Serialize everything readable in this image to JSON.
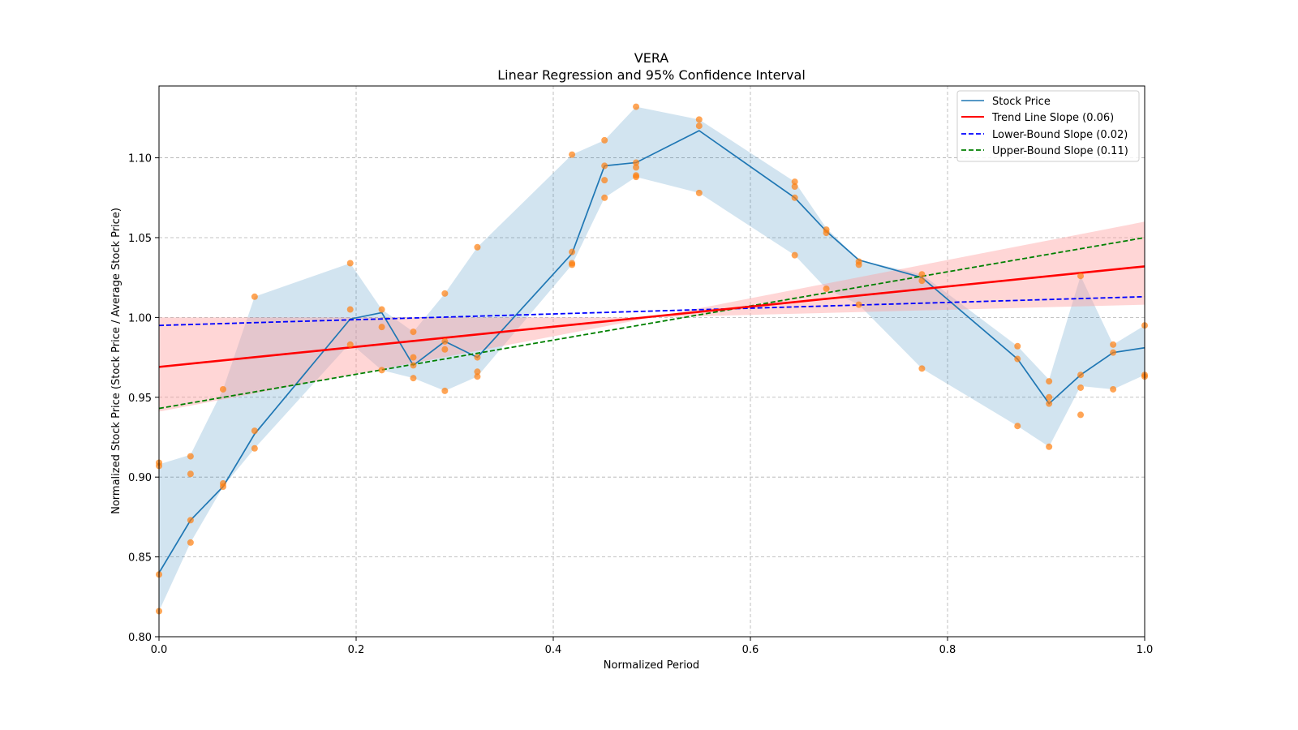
{
  "chart_data": {
    "type": "line",
    "title": "VERA",
    "subtitle": "Linear Regression and 95% Confidence Interval",
    "xlabel": "Normalized Period",
    "ylabel": "Normalized Stock Price (Stock Price / Average Stock Price)",
    "xlim": [
      0.0,
      1.0
    ],
    "ylim": [
      0.8,
      1.145
    ],
    "xticks": [
      "0.0",
      "0.2",
      "0.4",
      "0.6",
      "0.8",
      "1.0"
    ],
    "yticks": [
      "0.80",
      "0.85",
      "0.90",
      "0.95",
      "1.00",
      "1.05",
      "1.10"
    ],
    "grid": true,
    "legend_position": "top-right",
    "legend": [
      {
        "label": "Stock Price",
        "color": "#1f77b4",
        "style": "solid"
      },
      {
        "label": "Trend Line Slope (0.06)",
        "color": "#ff0000",
        "style": "solid"
      },
      {
        "label": "Lower-Bound Slope (0.02)",
        "color": "#0000ff",
        "style": "dashed"
      },
      {
        "label": "Upper-Bound Slope (0.11)",
        "color": "#008000",
        "style": "dashed"
      }
    ],
    "stock_price": {
      "x": [
        0.0,
        0.032,
        0.065,
        0.097,
        0.194,
        0.226,
        0.258,
        0.29,
        0.323,
        0.419,
        0.452,
        0.484,
        0.548,
        0.645,
        0.677,
        0.71,
        0.774,
        0.871,
        0.903,
        0.935,
        0.968,
        1.0
      ],
      "y": [
        0.84,
        0.873,
        0.894,
        0.927,
        0.999,
        1.003,
        0.97,
        0.985,
        0.975,
        1.04,
        1.095,
        1.097,
        1.117,
        1.075,
        1.054,
        1.036,
        1.025,
        0.974,
        0.946,
        0.964,
        0.978,
        0.981
      ]
    },
    "stock_band": {
      "lower": [
        0.816,
        0.859,
        0.894,
        0.918,
        0.984,
        0.967,
        0.962,
        0.954,
        0.963,
        1.033,
        1.075,
        1.088,
        1.078,
        1.039,
        1.018,
        1.008,
        0.968,
        0.932,
        0.919,
        0.957,
        0.955,
        0.964
      ],
      "upper": [
        0.908,
        0.914,
        0.955,
        1.013,
        1.034,
        1.005,
        0.991,
        1.015,
        1.044,
        1.102,
        1.111,
        1.132,
        1.124,
        1.085,
        1.056,
        1.036,
        1.027,
        0.982,
        0.961,
        1.026,
        0.983,
        0.995
      ]
    },
    "scatter_points": {
      "x": [
        0.0,
        0.0,
        0.0,
        0.0,
        0.032,
        0.032,
        0.032,
        0.032,
        0.065,
        0.065,
        0.065,
        0.097,
        0.097,
        0.097,
        0.194,
        0.194,
        0.194,
        0.226,
        0.226,
        0.226,
        0.258,
        0.258,
        0.258,
        0.258,
        0.29,
        0.29,
        0.29,
        0.29,
        0.323,
        0.323,
        0.323,
        0.323,
        0.419,
        0.419,
        0.419,
        0.419,
        0.452,
        0.452,
        0.452,
        0.452,
        0.484,
        0.484,
        0.484,
        0.484,
        0.484,
        0.548,
        0.548,
        0.548,
        0.645,
        0.645,
        0.645,
        0.645,
        0.677,
        0.677,
        0.677,
        0.71,
        0.71,
        0.71,
        0.774,
        0.774,
        0.774,
        0.871,
        0.871,
        0.871,
        0.903,
        0.903,
        0.903,
        0.903,
        0.935,
        0.935,
        0.935,
        0.935,
        0.968,
        0.968,
        0.968,
        1.0,
        1.0,
        1.0
      ],
      "y": [
        0.909,
        0.907,
        0.839,
        0.816,
        0.913,
        0.902,
        0.873,
        0.859,
        0.955,
        0.896,
        0.894,
        1.013,
        0.929,
        0.918,
        1.034,
        1.005,
        0.983,
        1.005,
        0.994,
        0.967,
        0.991,
        0.975,
        0.97,
        0.962,
        1.015,
        0.985,
        0.98,
        0.954,
        1.044,
        0.975,
        0.966,
        0.963,
        1.102,
        1.034,
        1.033,
        1.041,
        1.111,
        1.095,
        1.086,
        1.075,
        1.132,
        1.097,
        1.094,
        1.089,
        1.088,
        1.124,
        1.12,
        1.078,
        1.085,
        1.082,
        1.075,
        1.039,
        1.055,
        1.053,
        1.018,
        1.035,
        1.033,
        1.008,
        1.027,
        1.023,
        0.968,
        0.982,
        0.974,
        0.932,
        0.96,
        0.95,
        0.946,
        0.919,
        1.026,
        0.964,
        0.956,
        0.939,
        0.983,
        0.978,
        0.955,
        0.995,
        0.964,
        0.963
      ]
    },
    "trend_line": {
      "x": [
        0.0,
        1.0
      ],
      "y": [
        0.969,
        1.032
      ]
    },
    "trend_band": {
      "x": [
        0.0,
        0.5,
        1.0
      ],
      "lower": [
        0.941,
        1.0,
        1.008
      ],
      "upper": [
        1.0,
        1.0,
        1.06
      ]
    },
    "lower_bound_line": {
      "x": [
        0.0,
        1.0
      ],
      "y": [
        0.995,
        1.013
      ]
    },
    "upper_bound_line": {
      "x": [
        0.0,
        1.0
      ],
      "y": [
        0.943,
        1.05
      ]
    },
    "colors": {
      "stock_line": "#1f77b4",
      "stock_band": "#1f77b4",
      "scatter": "#ff7f0e",
      "trend": "#ff0000",
      "trend_band": "#ff9999",
      "lower_bound": "#0000ff",
      "upper_bound": "#008000"
    }
  }
}
